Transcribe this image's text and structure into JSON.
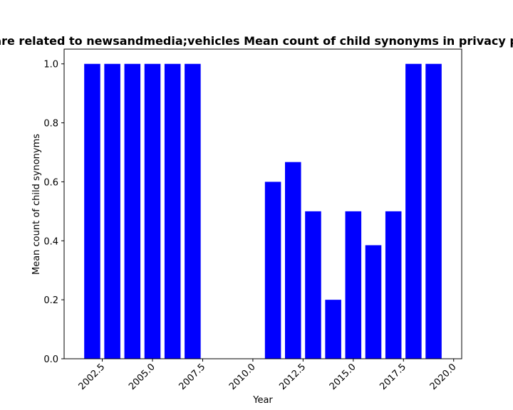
{
  "chart_data": {
    "type": "bar",
    "title": "Titles are related to newsandmedia;vehicles Mean count of child synonyms in privacy policies",
    "xlabel": "Year",
    "ylabel": "Mean count of child synonyms",
    "x": [
      2002,
      2003,
      2004,
      2005,
      2006,
      2007,
      2011,
      2012,
      2013,
      2014,
      2015,
      2016,
      2017,
      2018,
      2019
    ],
    "values": [
      1.0,
      1.0,
      1.0,
      1.0,
      1.0,
      1.0,
      0.6,
      0.667,
      0.5,
      0.2,
      0.5,
      0.385,
      0.5,
      1.0,
      1.0
    ],
    "xlim": [
      2000.6,
      2020.4
    ],
    "ylim": [
      0,
      1.05
    ],
    "xticks": [
      2002.5,
      2005.0,
      2007.5,
      2010.0,
      2012.5,
      2015.0,
      2017.5,
      2020.0
    ],
    "xtick_labels": [
      "2002.5",
      "2005.0",
      "2007.5",
      "2010.0",
      "2012.5",
      "2015.0",
      "2017.5",
      "2020.0"
    ],
    "yticks": [
      0.0,
      0.2,
      0.4,
      0.6,
      0.8,
      1.0
    ],
    "ytick_labels": [
      "0.0",
      "0.2",
      "0.4",
      "0.6",
      "0.8",
      "1.0"
    ],
    "bar_color": "#0000ff",
    "grid": false
  }
}
